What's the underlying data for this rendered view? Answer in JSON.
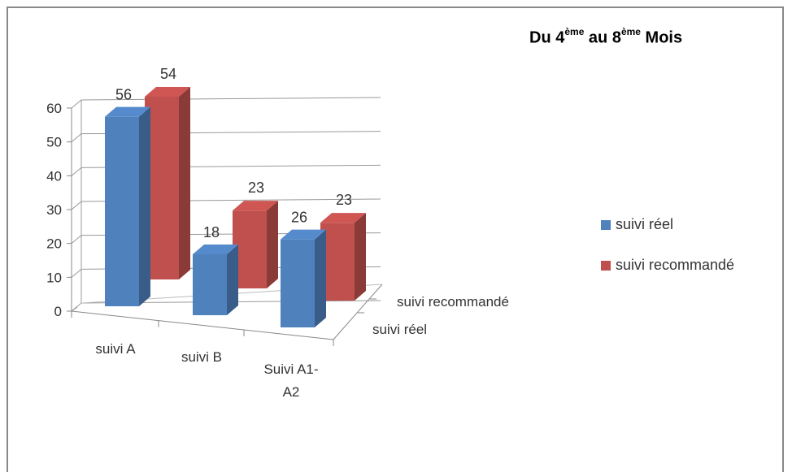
{
  "chart_data": {
    "type": "bar",
    "title": {
      "prefix": "Du  4",
      "sup1": "ème",
      "middle": " au 8",
      "sup2": "ème",
      "suffix": " Mois"
    },
    "categories": [
      "suivi A",
      "suivi B",
      "Suivi A1-A2"
    ],
    "category_lines": [
      [
        "suivi A"
      ],
      [
        "suivi B"
      ],
      [
        "Suivi A1-",
        "A2"
      ]
    ],
    "depth_labels": [
      "suivi réel",
      "suivi recommandé"
    ],
    "series": [
      {
        "name": "suivi réel",
        "values": [
          56,
          18,
          26
        ],
        "color": "#4F81BD"
      },
      {
        "name": "suivi recommandé",
        "values": [
          54,
          23,
          23
        ],
        "color": "#C0504D"
      }
    ],
    "yticks": [
      0,
      10,
      20,
      30,
      40,
      50,
      60
    ],
    "ylim": [
      0,
      60
    ],
    "grid": true,
    "legend_position": "right",
    "style": "3d-column"
  }
}
